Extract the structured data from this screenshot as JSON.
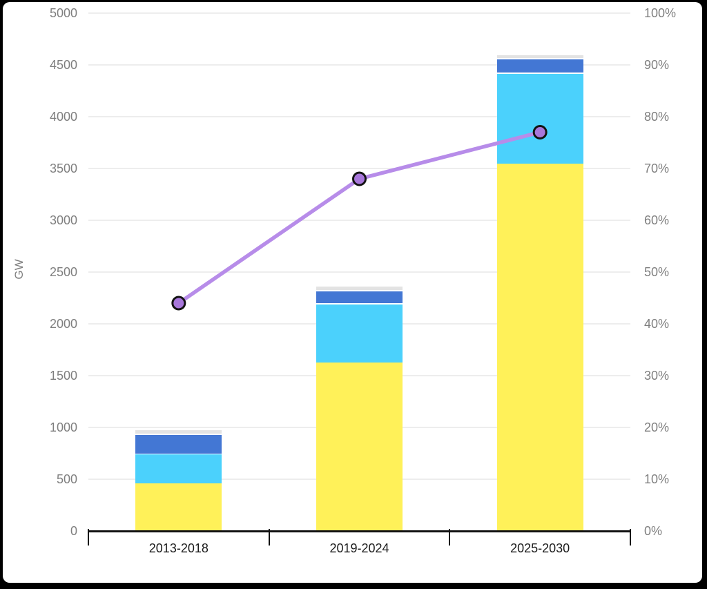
{
  "chart_data": {
    "type": "bar",
    "subtype": "stacked-columns-with-line-overlay",
    "title": "",
    "legend": "none",
    "grid": true,
    "categories": [
      "2013-2018",
      "2019-2024",
      "2025-2030"
    ],
    "series": [
      {
        "name": "yellow-segment",
        "color": "#FFF159",
        "values": [
          460,
          1630,
          3550
        ]
      },
      {
        "name": "cyan-segment",
        "color": "#4BD1FC",
        "values": [
          290,
          570,
          875
        ]
      },
      {
        "name": "blue-segment",
        "color": "#4377D4",
        "values": [
          190,
          125,
          140
        ]
      },
      {
        "name": "gray-segment",
        "color": "#E3E3E3",
        "values": [
          45,
          45,
          40
        ]
      }
    ],
    "line_series": {
      "name": "purple-percentage-line",
      "axis": "right",
      "values_percent": [
        44,
        68,
        77
      ],
      "line_color": "#B78CE9",
      "marker_fill": "#A877DB",
      "marker_stroke": "#141414"
    },
    "left_axis": {
      "label": "GW",
      "min": 0,
      "max": 5000,
      "step": 500,
      "tick_labels": [
        "0",
        "500",
        "1000",
        "1500",
        "2000",
        "2500",
        "3000",
        "3500",
        "4000",
        "4500",
        "5000"
      ]
    },
    "right_axis": {
      "min": 0,
      "max": 100,
      "step": 10,
      "tick_labels": [
        "0%",
        "10%",
        "20%",
        "30%",
        "40%",
        "50%",
        "60%",
        "70%",
        "80%",
        "90%",
        "100%"
      ]
    },
    "colors": {
      "gridline": "#EDEDED",
      "axis_line": "#111111",
      "tick_text": "#7f7f7f",
      "category_text": "#1a1a1a",
      "panel_background": "#ffffff",
      "frame_background": "#000000"
    }
  }
}
